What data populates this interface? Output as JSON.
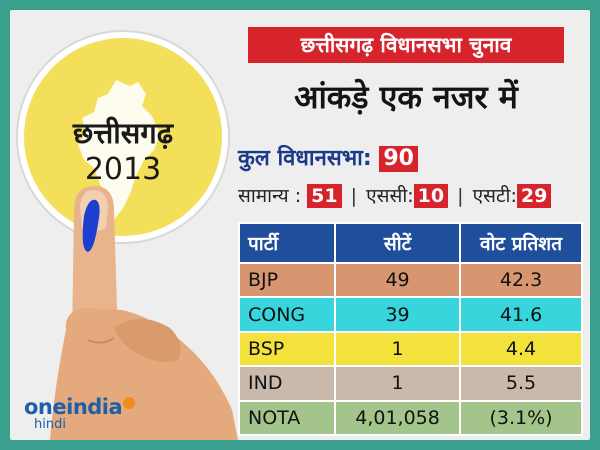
{
  "badge": {
    "state": "छत्तीसगढ़",
    "year": "2013"
  },
  "logo": {
    "brand": "oneindia",
    "sub": "hindi"
  },
  "title": "छत्तीसगढ़ विधानसभा चुनाव",
  "subtitle": "आंकड़े एक नजर में",
  "total": {
    "label": "कुल विधानसभा:",
    "value": "90"
  },
  "categories": [
    {
      "label": "सामान्य :",
      "value": "51"
    },
    {
      "label": "एससी:",
      "value": "10"
    },
    {
      "label": "एसटी:",
      "value": "29"
    }
  ],
  "table": {
    "headers": [
      "पार्टी",
      "सीटें",
      "वोट प्रतिशत"
    ],
    "rows": [
      {
        "party": "BJP",
        "seats": "49",
        "vote": "42.3",
        "color": "#d79670"
      },
      {
        "party": "CONG",
        "seats": "39",
        "vote": "41.6",
        "color": "#38d6dc"
      },
      {
        "party": "BSP",
        "seats": "1",
        "vote": "4.4",
        "color": "#f2e23b"
      },
      {
        "party": "IND",
        "seats": "1",
        "vote": "5.5",
        "color": "#c8b9ac"
      },
      {
        "party": "NOTA",
        "seats": "4,01,058",
        "vote": "(3.1%)",
        "color": "#a3c58c"
      }
    ]
  },
  "colors": {
    "background": "#3b9f8d",
    "accent": "#d7232b",
    "header": "#1f4e9c",
    "badge": "#f3df59"
  }
}
